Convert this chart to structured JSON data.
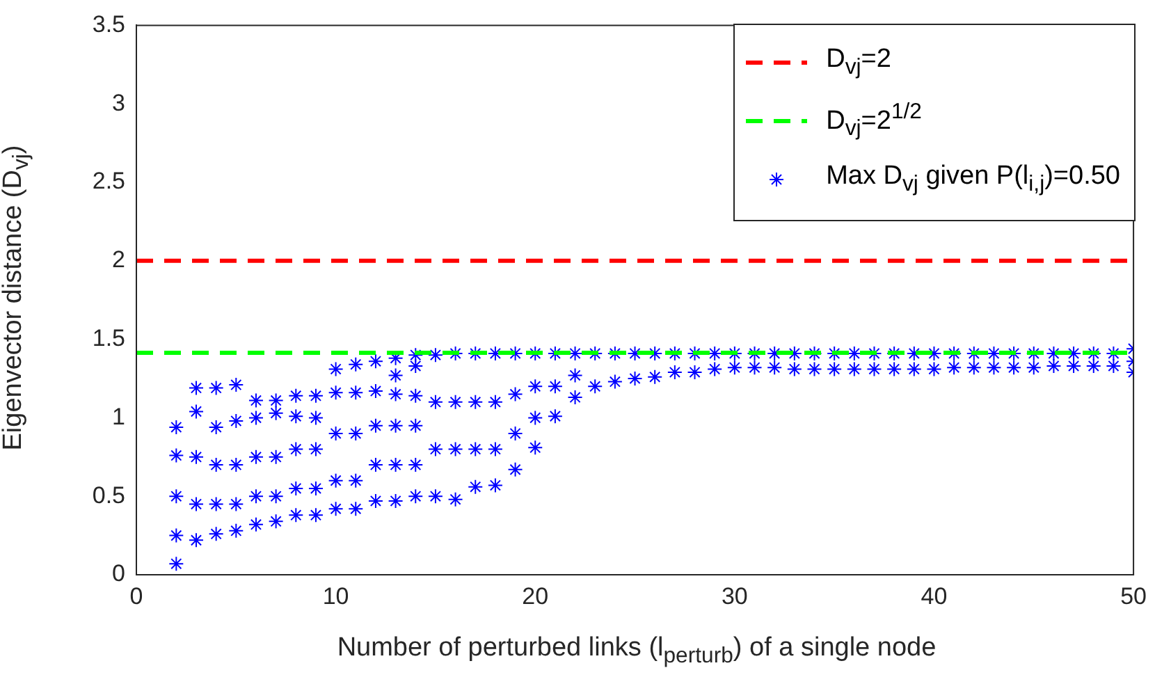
{
  "chart_data": {
    "type": "scatter",
    "xlabel": "Number of perturbed links (l$_{perturb}$) of a single node",
    "ylabel": "Eigenvector distance (D$_{vj}$)",
    "xlim": [
      0,
      50
    ],
    "xticks": [
      0,
      10,
      20,
      30,
      40,
      50
    ],
    "ylim": [
      0,
      3.5
    ],
    "yticks": [
      0,
      0.5,
      1,
      1.5,
      2,
      2.5,
      3,
      3.5
    ],
    "grid": false,
    "legend": "top right",
    "marker": "cross",
    "ref_lines": [
      {
        "axis": "y",
        "value": 2,
        "label": "D$_{vj}$=2",
        "color": "#ff0000",
        "line_style": "dashed"
      },
      {
        "axis": "y",
        "value": 1.414,
        "label": "D$_{vj}$=2$^{1/2}$",
        "color": "#00ff00",
        "line_style": "dashed"
      }
    ],
    "series": [
      {
        "name": "Max D$_{vj}$ given P(l$_{i,j}$)=0.50",
        "color": "#0000ff",
        "x": [
          2,
          2,
          2,
          2,
          2,
          3,
          3,
          3,
          3,
          3,
          4,
          4,
          4,
          4,
          4,
          5,
          5,
          5,
          5,
          5,
          6,
          6,
          6,
          6,
          6,
          7,
          7,
          7,
          7,
          7,
          8,
          8,
          8,
          8,
          8,
          9,
          9,
          9,
          9,
          9,
          10,
          10,
          10,
          10,
          10,
          11,
          11,
          11,
          11,
          11,
          12,
          12,
          12,
          12,
          12,
          13,
          13,
          13,
          13,
          13,
          13,
          14,
          14,
          14,
          14,
          14,
          14,
          15,
          15,
          15,
          15,
          16,
          16,
          16,
          16,
          17,
          17,
          17,
          17,
          18,
          18,
          18,
          18,
          19,
          19,
          19,
          19,
          20,
          20,
          20,
          20,
          21,
          21,
          21,
          22,
          22,
          22,
          23,
          23,
          24,
          24,
          25,
          25,
          26,
          26,
          27,
          27,
          28,
          28,
          29,
          29,
          30,
          30,
          31,
          31,
          32,
          32,
          33,
          33,
          34,
          34,
          35,
          35,
          36,
          36,
          37,
          37,
          38,
          38,
          39,
          39,
          40,
          40,
          41,
          41,
          42,
          42,
          43,
          43,
          44,
          44,
          45,
          45,
          46,
          46,
          47,
          47,
          48,
          48,
          49,
          49,
          50,
          50,
          50
        ],
        "values": [
          0.94,
          0.76,
          0.5,
          0.25,
          0.07,
          1.19,
          1.04,
          0.75,
          0.45,
          0.22,
          1.19,
          0.94,
          0.7,
          0.45,
          0.26,
          1.21,
          0.98,
          0.7,
          0.45,
          0.28,
          1.11,
          1.0,
          0.75,
          0.5,
          0.32,
          1.11,
          1.03,
          0.75,
          0.5,
          0.34,
          1.14,
          1.01,
          0.8,
          0.55,
          0.38,
          1.14,
          1.0,
          0.8,
          0.55,
          0.38,
          1.31,
          1.16,
          0.9,
          0.6,
          0.42,
          1.34,
          1.16,
          0.9,
          0.6,
          0.42,
          1.36,
          1.17,
          0.95,
          0.7,
          0.47,
          1.38,
          1.27,
          1.15,
          0.95,
          0.7,
          0.47,
          1.4,
          1.33,
          1.14,
          0.95,
          0.7,
          0.5,
          1.4,
          1.1,
          0.8,
          0.5,
          1.41,
          1.1,
          0.8,
          0.48,
          1.41,
          1.1,
          0.8,
          0.56,
          1.41,
          1.1,
          0.8,
          0.57,
          1.41,
          1.15,
          0.9,
          0.67,
          1.41,
          1.2,
          1.0,
          0.81,
          1.41,
          1.2,
          1.01,
          1.41,
          1.27,
          1.13,
          1.41,
          1.2,
          1.41,
          1.23,
          1.41,
          1.25,
          1.41,
          1.26,
          1.41,
          1.29,
          1.41,
          1.29,
          1.41,
          1.31,
          1.41,
          1.32,
          1.41,
          1.32,
          1.41,
          1.32,
          1.41,
          1.31,
          1.41,
          1.31,
          1.41,
          1.31,
          1.41,
          1.31,
          1.41,
          1.31,
          1.41,
          1.31,
          1.41,
          1.31,
          1.41,
          1.31,
          1.41,
          1.32,
          1.41,
          1.32,
          1.41,
          1.32,
          1.41,
          1.32,
          1.41,
          1.32,
          1.41,
          1.33,
          1.41,
          1.33,
          1.41,
          1.33,
          1.41,
          1.33,
          1.44,
          1.36,
          1.29
        ]
      }
    ]
  }
}
